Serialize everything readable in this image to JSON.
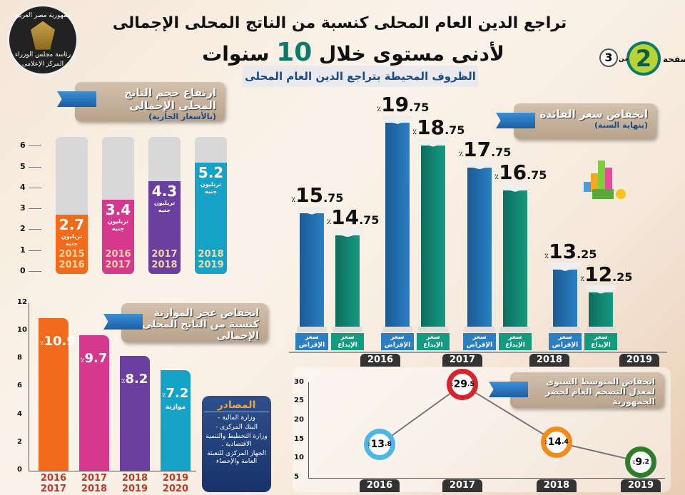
{
  "header": {
    "title_line1": "تراجع الدين العام المحلى كنسبة من الناتج المحلى الإجمالى",
    "title_line2_pre": "لأدنى مستوى خلال",
    "title_line2_num": "10",
    "title_line2_post": "سنوات",
    "subtitle": "الظروف المحيطة بتراجع الدين العام المحلى",
    "logo_text_top": "جمهورية مصر العربية",
    "logo_text_mid": "رئاسة مجلس الوزراء",
    "logo_text_bottom": "المركز الإعلامى"
  },
  "page": {
    "label": "صفحة",
    "current": "2",
    "of_label": "من",
    "total": "3"
  },
  "sources": {
    "title": "المصادر",
    "items": [
      "وزارة المالية -",
      "البنك المركزى -",
      "وزارة التخطيط والتنمية الاقتصادية .",
      "الجهاز المركزى للتعبئة العامة والإحصاء"
    ]
  },
  "colors": {
    "orange": "#f26a1b",
    "pink": "#d6388e",
    "purple": "#6b3fa0",
    "teal": "#14a3c7",
    "blue": "#2a7fc4",
    "green": "#159a82"
  },
  "chart_data": [
    {
      "type": "bar",
      "title": "ارتفاع حجم الناتج المحلى الإجمالى",
      "subtitle": "(بالأسعار الجارية)",
      "unit": "تريليون جنيه",
      "categories": [
        [
          "2015",
          "2016"
        ],
        [
          "2016",
          "2017"
        ],
        [
          "2017",
          "2018"
        ],
        [
          "2018",
          "2019"
        ]
      ],
      "values": [
        2.7,
        3.4,
        4.3,
        5.2
      ],
      "labels": [
        "2.7",
        "3.4",
        "4.3",
        "5.2"
      ],
      "yticks": [
        "0",
        "1",
        "2",
        "3",
        "4",
        "5",
        "6"
      ],
      "ylim": [
        0,
        6.5
      ]
    },
    {
      "type": "bar",
      "title": "انخفاض سعر الفائدة",
      "subtitle": "(بنهاية السنة)",
      "categories": [
        "2016",
        "2017",
        "2018",
        "2019"
      ],
      "series": [
        {
          "name": "سعر الإقراض",
          "values": [
            15.75,
            19.75,
            17.75,
            13.25
          ],
          "labels": [
            [
              "15",
              ".75"
            ],
            [
              "19",
              ".75"
            ],
            [
              "17",
              ".75"
            ],
            [
              "13",
              ".25"
            ]
          ]
        },
        {
          "name": "سعر الإيداع",
          "values": [
            14.75,
            18.75,
            16.75,
            12.25
          ],
          "labels": [
            [
              "14",
              ".75"
            ],
            [
              "18",
              ".75"
            ],
            [
              "16",
              ".75"
            ],
            [
              "12",
              ".25"
            ]
          ]
        }
      ],
      "percent": "٪"
    },
    {
      "type": "bar",
      "title": "انخفاض عجز الموازنة كنسبة من الناتج المحلى الإجمالى",
      "categories": [
        [
          "2016",
          "2017"
        ],
        [
          "2017",
          "2018"
        ],
        [
          "2018",
          "2019"
        ],
        [
          "2019",
          "2020"
        ]
      ],
      "values": [
        10.9,
        9.7,
        8.2,
        7.2
      ],
      "labels": [
        "10.9",
        "9.7",
        "8.2",
        "7.2"
      ],
      "note": "موازنة",
      "yticks": [
        "0",
        "2",
        "4",
        "6",
        "8",
        "10",
        "12"
      ],
      "ylim": [
        0,
        12
      ],
      "percent": "٪"
    },
    {
      "type": "line",
      "title": "انخفاض المتوسط السنوى لمعدل التضخم العام لحضر الجمهورية",
      "categories": [
        "2016",
        "2017",
        "2018",
        "2019"
      ],
      "values": [
        13.8,
        29.5,
        14.4,
        9.2
      ],
      "labels": [
        [
          "13",
          ".8"
        ],
        [
          "29",
          ".5"
        ],
        [
          "14",
          ".4"
        ],
        [
          "9",
          ".2"
        ]
      ],
      "yticks": [
        "5",
        "10",
        "15",
        "20",
        "25",
        "30"
      ],
      "ylim": [
        5,
        30
      ],
      "percent": "٪"
    }
  ]
}
